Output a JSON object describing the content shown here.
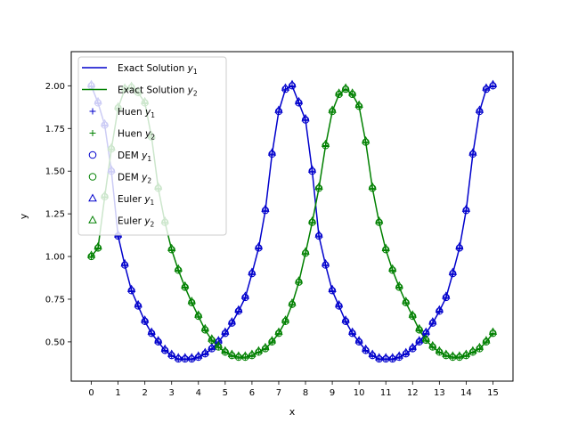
{
  "chart_data": {
    "type": "line",
    "xlabel": "x",
    "ylabel": "y",
    "xlim": [
      -0.75,
      15.75
    ],
    "ylim": [
      0.27,
      2.2
    ],
    "xticks": [
      0,
      1,
      2,
      3,
      4,
      5,
      6,
      7,
      8,
      9,
      10,
      11,
      12,
      13,
      14,
      15
    ],
    "yticks": [
      "0.50",
      "0.75",
      "1.00",
      "1.25",
      "1.50",
      "1.75",
      "2.00"
    ],
    "ytick_values": [
      0.5,
      0.75,
      1.0,
      1.25,
      1.5,
      1.75,
      2.0
    ],
    "grid": false,
    "legend": {
      "placement": "upper-left",
      "entries": [
        {
          "label": "Exact Solution y1",
          "base": "Exact Solution ",
          "sub": "1",
          "kind": "line",
          "color": "#0000cc"
        },
        {
          "label": "Exact Solution y2",
          "base": "Exact Solution ",
          "sub": "2",
          "kind": "line",
          "color": "#008000"
        },
        {
          "label": "Huen y1",
          "base": "Huen ",
          "sub": "1",
          "kind": "plus",
          "color": "#0000cc"
        },
        {
          "label": "Huen y2",
          "base": "Huen ",
          "sub": "2",
          "kind": "plus",
          "color": "#008000"
        },
        {
          "label": "DEM y1",
          "base": "DEM ",
          "sub": "1",
          "kind": "circle",
          "color": "#0000cc"
        },
        {
          "label": "DEM y2",
          "base": "DEM ",
          "sub": "2",
          "kind": "circle",
          "color": "#008000"
        },
        {
          "label": "Euler y1",
          "base": "Euler ",
          "sub": "1",
          "kind": "triangle",
          "color": "#0000cc"
        },
        {
          "label": "Euler y2",
          "base": "Euler ",
          "sub": "2",
          "kind": "triangle",
          "color": "#008000"
        }
      ]
    },
    "colors": {
      "y1": "#0000cc",
      "y2": "#008000"
    },
    "step": 0.25,
    "x": [
      0,
      0.25,
      0.5,
      0.75,
      1,
      1.25,
      1.5,
      1.75,
      2,
      2.25,
      2.5,
      2.75,
      3,
      3.25,
      3.5,
      3.75,
      4,
      4.25,
      4.5,
      4.75,
      5,
      5.25,
      5.5,
      5.75,
      6,
      6.25,
      6.5,
      6.75,
      7,
      7.25,
      7.5,
      7.75,
      8,
      8.25,
      8.5,
      8.75,
      9,
      9.25,
      9.5,
      9.75,
      10,
      10.25,
      10.5,
      10.75,
      11,
      11.25,
      11.5,
      11.75,
      12,
      12.25,
      12.5,
      12.75,
      13,
      13.25,
      13.5,
      13.75,
      14,
      14.25,
      14.5,
      14.75,
      15
    ],
    "series": [
      {
        "name": "Exact Solution y1",
        "values": [
          2.0,
          1.9,
          1.77,
          1.5,
          1.12,
          0.95,
          0.8,
          0.71,
          0.62,
          0.55,
          0.5,
          0.45,
          0.42,
          0.4,
          0.4,
          0.4,
          0.41,
          0.43,
          0.46,
          0.5,
          0.55,
          0.61,
          0.68,
          0.76,
          0.9,
          1.05,
          1.27,
          1.6,
          1.85,
          1.98,
          2.0,
          1.9,
          1.8,
          1.5,
          1.12,
          0.95,
          0.8,
          0.71,
          0.62,
          0.55,
          0.5,
          0.45,
          0.42,
          0.4,
          0.4,
          0.4,
          0.41,
          0.43,
          0.46,
          0.5,
          0.55,
          0.61,
          0.68,
          0.76,
          0.9,
          1.05,
          1.27,
          1.6,
          1.85,
          1.98,
          2.0
        ]
      },
      {
        "name": "Exact Solution y2",
        "values": [
          1.0,
          1.05,
          1.35,
          1.63,
          1.87,
          1.98,
          1.99,
          1.96,
          1.9,
          1.7,
          1.4,
          1.2,
          1.04,
          0.92,
          0.82,
          0.73,
          0.65,
          0.57,
          0.51,
          0.47,
          0.44,
          0.42,
          0.41,
          0.41,
          0.42,
          0.44,
          0.46,
          0.5,
          0.55,
          0.62,
          0.72,
          0.85,
          1.02,
          1.2,
          1.4,
          1.65,
          1.85,
          1.95,
          1.98,
          1.95,
          1.88,
          1.67,
          1.4,
          1.2,
          1.04,
          0.92,
          0.82,
          0.73,
          0.65,
          0.57,
          0.51,
          0.47,
          0.44,
          0.42,
          0.41,
          0.41,
          0.42,
          0.44,
          0.46,
          0.5,
          0.55
        ]
      }
    ]
  }
}
